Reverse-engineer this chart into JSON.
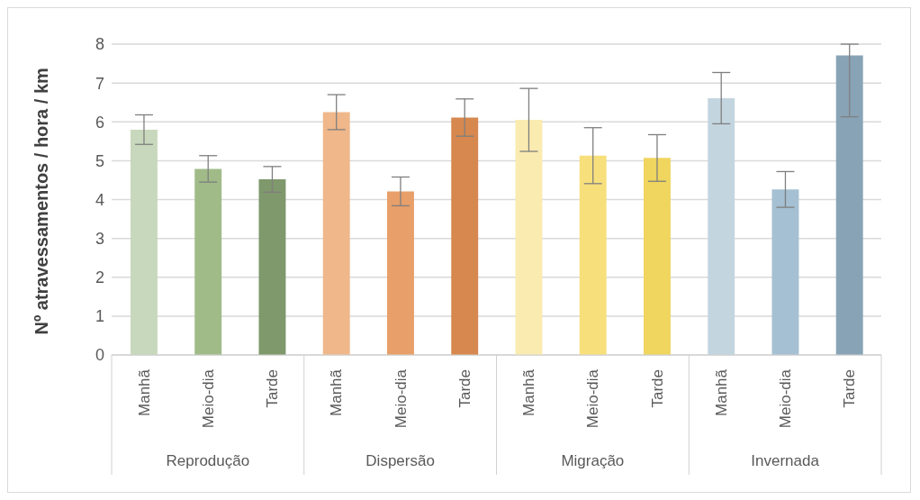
{
  "chart_data": {
    "type": "bar",
    "ylabel": "Nº atravessamentos / hora / km",
    "categories": [
      "Manhã",
      "Meio-dia",
      "Tarde",
      "Manhã",
      "Meio-dia",
      "Tarde",
      "Manhã",
      "Meio-dia",
      "Tarde",
      "Manhã",
      "Meio-dia",
      "Tarde"
    ],
    "values": [
      5.8,
      4.79,
      4.52,
      6.25,
      4.21,
      6.11,
      6.05,
      5.13,
      5.07,
      6.61,
      4.26,
      7.71
    ],
    "errors": [
      0.38,
      0.34,
      0.33,
      0.45,
      0.37,
      0.48,
      0.81,
      0.72,
      0.6,
      0.66,
      0.46,
      [
        6.13,
        8
      ]
    ],
    "colors": [
      "#c8d8bc",
      "#a0bb88",
      "#7f986c",
      "#efb78a",
      "#e89f69",
      "#d6884e",
      "#faebb0",
      "#f7e07c",
      "#f0d55e",
      "#c3d6e0",
      "#a5c0d2",
      "#88a3b6"
    ],
    "annotations": [
      "Reprodução",
      "Dispersão",
      "Migração",
      "Invernada"
    ],
    "ylim": [
      0,
      8
    ],
    "yticks": [
      0,
      1,
      2,
      3,
      4,
      5,
      6,
      7,
      8
    ],
    "grid": "y"
  }
}
